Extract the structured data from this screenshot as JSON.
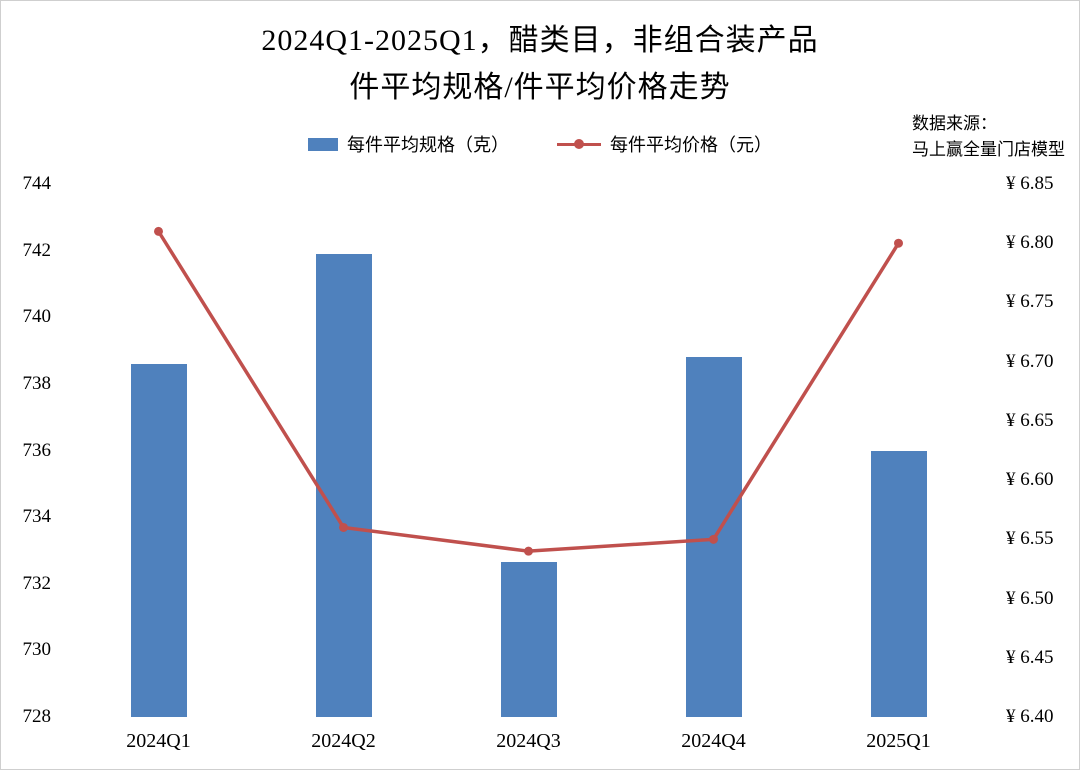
{
  "title": {
    "line1": "2024Q1-2025Q1，醋类目，非组合装产品",
    "line2": "件平均规格/件平均价格走势"
  },
  "legend": {
    "bar_label": "每件平均规格（克）",
    "line_label": "每件平均价格（元）"
  },
  "source": {
    "line1": "数据来源：",
    "line2": "马上赢全量门店模型"
  },
  "colors": {
    "bar": "#4f81bd",
    "line": "#c0504d"
  },
  "chart_data": {
    "type": "bar+line",
    "title": "2024Q1-2025Q1，醋类目，非组合装产品 件平均规格/件平均价格走势",
    "categories": [
      "2024Q1",
      "2024Q2",
      "2024Q3",
      "2024Q4",
      "2025Q1"
    ],
    "series": [
      {
        "name": "每件平均规格（克）",
        "type": "bar",
        "axis": "left",
        "unit": "克",
        "values": [
          738.6,
          741.9,
          732.65,
          738.8,
          736.0
        ]
      },
      {
        "name": "每件平均价格（元）",
        "type": "line",
        "axis": "right",
        "unit": "元",
        "values": [
          6.81,
          6.56,
          6.54,
          6.55,
          6.8
        ]
      }
    ],
    "left_axis": {
      "min": 728,
      "max": 744,
      "step": 2,
      "tick_labels": [
        "744",
        "742",
        "740",
        "738",
        "736",
        "734",
        "732",
        "730",
        "728"
      ]
    },
    "right_axis": {
      "min": 6.4,
      "max": 6.85,
      "step": 0.05,
      "tick_labels": [
        "¥ 6.85",
        "¥ 6.80",
        "¥ 6.75",
        "¥ 6.70",
        "¥ 6.65",
        "¥ 6.60",
        "¥ 6.55",
        "¥ 6.50",
        "¥ 6.45",
        "¥ 6.40"
      ]
    },
    "grid": false,
    "legend_position": "top",
    "source_note": "数据来源：马上赢全量门店模型"
  }
}
